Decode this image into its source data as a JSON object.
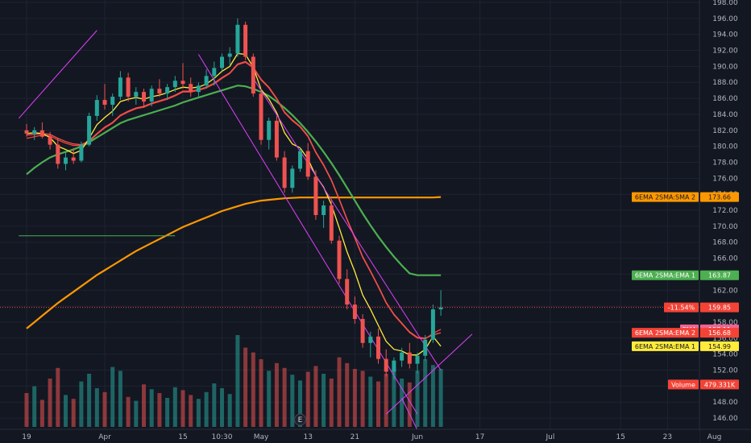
{
  "chart_data": {
    "type": "candlestick",
    "title": "",
    "xlabel": "",
    "ylabel": "",
    "ylim": [
      145.0,
      198.0
    ],
    "y_ticks": [
      "146.00",
      "148.00",
      "150.00",
      "152.00",
      "154.00",
      "156.00",
      "158.00",
      "160.00",
      "162.00",
      "164.00",
      "166.00",
      "168.00",
      "170.00",
      "172.00",
      "174.00",
      "176.00",
      "178.00",
      "180.00",
      "182.00",
      "184.00",
      "186.00",
      "188.00",
      "190.00",
      "192.00",
      "194.00",
      "196.00",
      "198.00"
    ],
    "x_ticks": [
      {
        "label": "19",
        "i": 0
      },
      {
        "label": "Apr",
        "i": 10
      },
      {
        "label": "15",
        "i": 20
      },
      {
        "label": "10:30",
        "i": 25
      },
      {
        "label": "May",
        "i": 30
      },
      {
        "label": "13",
        "i": 36
      },
      {
        "label": "21",
        "i": 42
      },
      {
        "label": "Jun",
        "i": 50
      },
      {
        "label": "17",
        "i": 58
      },
      {
        "label": "Jul",
        "i": 67
      },
      {
        "label": "15",
        "i": 76
      },
      {
        "label": "23",
        "i": 82
      },
      {
        "label": "Aug",
        "i": 88
      }
    ],
    "grid": true,
    "candles": [
      [
        182.0,
        182.8,
        181.2,
        181.6
      ],
      [
        181.6,
        182.4,
        180.8,
        182.0
      ],
      [
        182.0,
        183.0,
        181.0,
        181.2
      ],
      [
        181.2,
        181.8,
        179.6,
        180.2
      ],
      [
        180.2,
        181.0,
        177.2,
        177.8
      ],
      [
        177.8,
        179.2,
        177.0,
        178.6
      ],
      [
        178.6,
        179.8,
        177.8,
        178.2
      ],
      [
        178.2,
        180.6,
        178.0,
        180.2
      ],
      [
        180.2,
        184.2,
        180.0,
        183.8
      ],
      [
        183.8,
        186.4,
        183.2,
        185.8
      ],
      [
        185.8,
        187.8,
        184.6,
        185.2
      ],
      [
        185.2,
        186.6,
        183.8,
        186.2
      ],
      [
        186.2,
        189.4,
        185.8,
        188.6
      ],
      [
        188.6,
        189.2,
        185.6,
        186.2
      ],
      [
        186.2,
        187.4,
        185.2,
        186.8
      ],
      [
        186.8,
        187.2,
        184.8,
        185.6
      ],
      [
        185.6,
        187.6,
        185.0,
        187.2
      ],
      [
        187.2,
        188.4,
        186.2,
        186.6
      ],
      [
        186.6,
        187.8,
        185.8,
        187.4
      ],
      [
        187.4,
        188.8,
        186.8,
        188.2
      ],
      [
        188.2,
        190.4,
        187.2,
        187.8
      ],
      [
        187.8,
        188.6,
        186.2,
        186.8
      ],
      [
        186.8,
        188.0,
        186.0,
        187.6
      ],
      [
        187.6,
        189.6,
        187.2,
        188.8
      ],
      [
        188.8,
        190.6,
        187.6,
        189.8
      ],
      [
        189.8,
        191.6,
        189.4,
        191.2
      ],
      [
        191.2,
        192.4,
        190.2,
        191.6
      ],
      [
        191.6,
        196.0,
        191.2,
        195.2
      ],
      [
        195.2,
        195.6,
        190.8,
        191.2
      ],
      [
        191.2,
        191.6,
        186.2,
        186.6
      ],
      [
        186.6,
        187.2,
        180.2,
        180.8
      ],
      [
        180.8,
        183.6,
        179.6,
        183.2
      ],
      [
        183.2,
        183.8,
        178.2,
        178.6
      ],
      [
        178.6,
        179.4,
        174.2,
        174.8
      ],
      [
        174.8,
        177.6,
        174.2,
        177.2
      ],
      [
        177.2,
        179.8,
        176.8,
        179.4
      ],
      [
        179.4,
        180.4,
        175.8,
        176.2
      ],
      [
        176.2,
        177.0,
        170.8,
        171.4
      ],
      [
        171.4,
        173.2,
        169.8,
        172.6
      ],
      [
        172.6,
        173.4,
        167.8,
        168.2
      ],
      [
        168.2,
        168.8,
        162.8,
        163.4
      ],
      [
        163.4,
        164.6,
        159.6,
        160.2
      ],
      [
        160.2,
        161.2,
        157.8,
        158.4
      ],
      [
        158.4,
        159.0,
        154.8,
        155.4
      ],
      [
        155.4,
        156.8,
        153.6,
        156.2
      ],
      [
        156.2,
        157.2,
        152.8,
        153.4
      ],
      [
        153.4,
        154.6,
        151.2,
        151.8
      ],
      [
        151.8,
        153.6,
        150.8,
        153.2
      ],
      [
        153.2,
        154.8,
        152.4,
        154.2
      ],
      [
        154.2,
        155.4,
        152.2,
        152.8
      ],
      [
        152.8,
        154.2,
        151.6,
        153.8
      ],
      [
        153.8,
        156.4,
        153.2,
        155.8
      ],
      [
        155.8,
        160.2,
        155.4,
        159.6
      ],
      [
        159.6,
        162.0,
        158.8,
        159.85
      ]
    ],
    "volume": [
      0.35,
      0.42,
      0.28,
      0.5,
      0.61,
      0.33,
      0.29,
      0.47,
      0.55,
      0.4,
      0.36,
      0.62,
      0.58,
      0.31,
      0.27,
      0.44,
      0.39,
      0.35,
      0.3,
      0.41,
      0.38,
      0.33,
      0.29,
      0.36,
      0.45,
      0.4,
      0.34,
      0.95,
      0.82,
      0.77,
      0.7,
      0.58,
      0.66,
      0.61,
      0.54,
      0.48,
      0.57,
      0.63,
      0.55,
      0.5,
      0.72,
      0.66,
      0.6,
      0.58,
      0.52,
      0.47,
      0.55,
      0.61,
      0.5,
      0.46,
      0.58,
      0.7,
      0.64,
      0.6
    ],
    "series": [
      {
        "name": "6EMA 2SMA:SMA 2",
        "color": "#ff9800",
        "values": [
          157.2,
          158.0,
          158.8,
          159.6,
          160.4,
          161.1,
          161.8,
          162.5,
          163.2,
          163.9,
          164.5,
          165.1,
          165.7,
          166.3,
          166.9,
          167.4,
          167.9,
          168.4,
          168.9,
          169.4,
          169.9,
          170.3,
          170.7,
          171.1,
          171.5,
          171.9,
          172.2,
          172.5,
          172.8,
          173.0,
          173.2,
          173.3,
          173.4,
          173.5,
          173.55,
          173.6,
          173.6,
          173.6,
          173.6,
          173.6,
          173.6,
          173.6,
          173.6,
          173.6,
          173.6,
          173.6,
          173.6,
          173.6,
          173.6,
          173.6,
          173.6,
          173.6,
          173.6,
          173.66
        ]
      },
      {
        "name": "6EMA 2SMA:EMA 1",
        "color": "#4caf50",
        "values": [
          176.5,
          177.3,
          178.0,
          178.6,
          179.0,
          179.3,
          179.6,
          180.0,
          180.5,
          181.1,
          181.7,
          182.3,
          182.9,
          183.3,
          183.6,
          183.9,
          184.2,
          184.5,
          184.8,
          185.1,
          185.5,
          185.8,
          186.1,
          186.4,
          186.7,
          187.0,
          187.3,
          187.6,
          187.5,
          187.2,
          186.8,
          186.3,
          185.6,
          184.8,
          183.9,
          182.9,
          181.8,
          180.6,
          179.3,
          177.9,
          176.4,
          174.8,
          173.2,
          171.6,
          170.1,
          168.7,
          167.4,
          166.2,
          165.1,
          164.1,
          163.87,
          163.87,
          163.87,
          163.87
        ]
      },
      {
        "name": "EMA",
        "color": "#f44336",
        "values": [
          181.0,
          181.2,
          181.4,
          181.3,
          180.8,
          180.4,
          180.1,
          180.1,
          180.6,
          181.5,
          182.3,
          182.9,
          183.8,
          184.3,
          184.7,
          184.9,
          185.3,
          185.6,
          185.9,
          186.3,
          186.8,
          186.8,
          187.0,
          187.3,
          187.8,
          188.5,
          189.1,
          190.2,
          190.5,
          189.8,
          188.3,
          187.3,
          185.9,
          184.2,
          183.2,
          182.4,
          181.2,
          179.2,
          177.6,
          175.7,
          173.3,
          170.8,
          168.5,
          166.1,
          164.3,
          162.4,
          160.4,
          158.9,
          157.8,
          156.7,
          156.0,
          155.9,
          156.6,
          157.11
        ]
      },
      {
        "name": "6EMA 2SMA:EMA 2",
        "color": "#ef5350",
        "values": [
          181.4,
          181.5,
          181.6,
          181.5,
          181.0,
          180.6,
          180.3,
          180.2,
          180.7,
          181.6,
          182.4,
          183.0,
          183.9,
          184.4,
          184.8,
          185.0,
          185.4,
          185.7,
          186.0,
          186.4,
          186.9,
          186.9,
          187.1,
          187.4,
          187.9,
          188.6,
          189.2,
          190.3,
          190.6,
          189.9,
          188.4,
          187.4,
          186.0,
          184.3,
          183.3,
          182.5,
          181.3,
          179.3,
          177.7,
          175.8,
          173.4,
          170.9,
          168.6,
          166.2,
          164.4,
          162.5,
          160.5,
          159.0,
          157.9,
          156.8,
          156.1,
          156.0,
          156.4,
          156.68
        ]
      },
      {
        "name": "6EMA 2SMA:EMA 1",
        "color": "#ffeb3b",
        "values": [
          181.6,
          181.7,
          181.6,
          181.1,
          180.0,
          179.6,
          179.1,
          179.5,
          181.0,
          182.7,
          183.6,
          184.4,
          185.6,
          185.9,
          186.1,
          185.9,
          186.2,
          186.4,
          186.7,
          187.1,
          187.4,
          187.3,
          187.4,
          187.8,
          188.5,
          189.4,
          190.0,
          191.6,
          191.5,
          189.9,
          187.1,
          185.9,
          184.2,
          181.7,
          180.3,
          179.8,
          178.4,
          176.3,
          174.9,
          172.7,
          169.8,
          166.8,
          164.3,
          161.4,
          159.6,
          157.6,
          155.6,
          154.6,
          154.4,
          153.9,
          153.9,
          154.6,
          156.2,
          154.99
        ]
      }
    ],
    "trendlines": [
      {
        "color": "#e040fb",
        "points": [
          [
            -1,
            183.5
          ],
          [
            9,
            194.5
          ]
        ]
      },
      {
        "color": "#e040fb",
        "points": [
          [
            22,
            191.5
          ],
          [
            50,
            146.5
          ]
        ]
      },
      {
        "color": "#e040fb",
        "points": [
          [
            29,
            188.5
          ],
          [
            53,
            152.0
          ]
        ]
      },
      {
        "color": "#e040fb",
        "points": [
          [
            46,
            146.5
          ],
          [
            57,
            156.5
          ]
        ]
      },
      {
        "color": "#e040fb",
        "points": [
          [
            50,
            144.5
          ],
          [
            48,
            148.5
          ]
        ]
      }
    ],
    "hline": {
      "color": "#4caf50",
      "value": 168.8,
      "from": -1,
      "to": 19
    },
    "price_line": {
      "value": 159.85,
      "color": "#f44336"
    },
    "badges": [
      {
        "name": "6EMA 2SMA:SMA 2",
        "value": "173.66",
        "color": "#ff9800",
        "text_color": "#131722"
      },
      {
        "name": "6EMA 2SMA:EMA 1",
        "value": "163.87",
        "color": "#4caf50",
        "text_color": "#ffffff"
      },
      {
        "name": "-11.54%",
        "value": "159.85",
        "color": "#f44336",
        "text_color": "#ffffff"
      },
      {
        "name": "EMA",
        "value": "157.11",
        "color": "#f06292",
        "text_color": "#ffffff"
      },
      {
        "name": "6EMA 2SMA:EMA 2",
        "value": "156.68",
        "color": "#f44336",
        "text_color": "#ffffff"
      },
      {
        "name": "6EMA 2SMA:EMA 1",
        "value": "154.99",
        "color": "#ffeb3b",
        "text_color": "#131722"
      },
      {
        "name": "Volume",
        "value": "479.331K",
        "color": "#f44336",
        "text_color": "#ffffff"
      }
    ],
    "earnings_marker": {
      "label": "E",
      "i": 35
    },
    "colors": {
      "up": "#26a69a",
      "down": "#ef5350",
      "vol_up": "#26a69a",
      "vol_down": "#ef5350",
      "background": "#131722",
      "grid": "#1f2330"
    }
  }
}
